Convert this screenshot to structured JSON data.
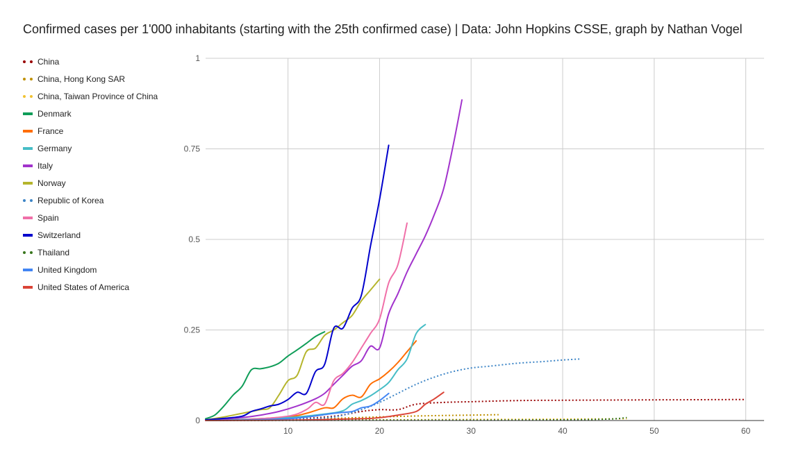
{
  "chart_data": {
    "type": "line",
    "title": "Confirmed cases per 1'000 inhabitants (starting with the 25th confirmed case) | Data: John Hopkins CSSE, graph by Nathan Vogel",
    "xlabel": "",
    "ylabel": "",
    "xlim": [
      1,
      62
    ],
    "ylim": [
      0,
      1
    ],
    "x_ticks": [
      10,
      20,
      30,
      40,
      50,
      60
    ],
    "y_ticks": [
      0,
      0.25,
      0.5,
      0.75,
      1
    ],
    "y_tick_labels": [
      "0",
      "0.25",
      "0.5",
      "0.75",
      "1"
    ],
    "grid": true,
    "legend_position": "left",
    "series": [
      {
        "name": "China",
        "color": "#990000",
        "dash": "dotted",
        "points": [
          [
            1,
            0.0
          ],
          [
            5,
            0.001
          ],
          [
            10,
            0.003
          ],
          [
            15,
            0.012
          ],
          [
            18,
            0.025
          ],
          [
            20,
            0.03
          ],
          [
            22,
            0.03
          ],
          [
            24,
            0.045
          ],
          [
            27,
            0.05
          ],
          [
            30,
            0.052
          ],
          [
            35,
            0.055
          ],
          [
            40,
            0.056
          ],
          [
            50,
            0.057
          ],
          [
            60,
            0.058
          ]
        ]
      },
      {
        "name": "China, Hong Kong SAR",
        "color": "#bf9000",
        "dash": "dotted",
        "points": [
          [
            1,
            0.0
          ],
          [
            10,
            0.003
          ],
          [
            15,
            0.006
          ],
          [
            20,
            0.01
          ],
          [
            25,
            0.013
          ],
          [
            30,
            0.015
          ],
          [
            33,
            0.016
          ]
        ]
      },
      {
        "name": "China, Taiwan Province of China",
        "color": "#f1c232",
        "dash": "dotted",
        "points": [
          [
            1,
            0.0
          ],
          [
            10,
            0.001
          ],
          [
            20,
            0.002
          ],
          [
            30,
            0.003
          ],
          [
            40,
            0.004
          ],
          [
            47,
            0.005
          ]
        ]
      },
      {
        "name": "Denmark",
        "color": "#0f9d58",
        "dash": "solid",
        "points": [
          [
            1,
            0.005
          ],
          [
            2,
            0.015
          ],
          [
            3,
            0.04
          ],
          [
            4,
            0.07
          ],
          [
            5,
            0.095
          ],
          [
            6,
            0.14
          ],
          [
            7,
            0.143
          ],
          [
            8,
            0.148
          ],
          [
            9,
            0.158
          ],
          [
            10,
            0.178
          ],
          [
            11,
            0.195
          ],
          [
            12,
            0.213
          ],
          [
            13,
            0.232
          ],
          [
            14,
            0.245
          ]
        ]
      },
      {
        "name": "France",
        "color": "#ff6d01",
        "dash": "solid",
        "points": [
          [
            1,
            0.0
          ],
          [
            5,
            0.003
          ],
          [
            10,
            0.01
          ],
          [
            12,
            0.02
          ],
          [
            14,
            0.035
          ],
          [
            15,
            0.035
          ],
          [
            16,
            0.06
          ],
          [
            17,
            0.07
          ],
          [
            18,
            0.065
          ],
          [
            19,
            0.1
          ],
          [
            20,
            0.115
          ],
          [
            21,
            0.135
          ],
          [
            22,
            0.16
          ],
          [
            23,
            0.19
          ],
          [
            24,
            0.22
          ]
        ]
      },
      {
        "name": "Germany",
        "color": "#46bdc6",
        "dash": "solid",
        "points": [
          [
            1,
            0.0
          ],
          [
            5,
            0.003
          ],
          [
            10,
            0.008
          ],
          [
            14,
            0.018
          ],
          [
            16,
            0.027
          ],
          [
            17,
            0.045
          ],
          [
            18,
            0.055
          ],
          [
            19,
            0.068
          ],
          [
            20,
            0.085
          ],
          [
            21,
            0.105
          ],
          [
            22,
            0.14
          ],
          [
            23,
            0.17
          ],
          [
            24,
            0.24
          ],
          [
            25,
            0.265
          ]
        ]
      },
      {
        "name": "Italy",
        "color": "#a233cc",
        "dash": "solid",
        "points": [
          [
            1,
            0.0
          ],
          [
            5,
            0.008
          ],
          [
            7,
            0.015
          ],
          [
            9,
            0.025
          ],
          [
            11,
            0.04
          ],
          [
            13,
            0.06
          ],
          [
            14,
            0.075
          ],
          [
            15,
            0.1
          ],
          [
            16,
            0.125
          ],
          [
            17,
            0.15
          ],
          [
            18,
            0.165
          ],
          [
            19,
            0.205
          ],
          [
            20,
            0.2
          ],
          [
            21,
            0.295
          ],
          [
            22,
            0.35
          ],
          [
            23,
            0.41
          ],
          [
            24,
            0.46
          ],
          [
            25,
            0.51
          ],
          [
            26,
            0.57
          ],
          [
            27,
            0.64
          ],
          [
            28,
            0.755
          ],
          [
            29,
            0.885
          ]
        ]
      },
      {
        "name": "Norway",
        "color": "#b5b52c",
        "dash": "solid",
        "points": [
          [
            1,
            0.002
          ],
          [
            3,
            0.01
          ],
          [
            5,
            0.02
          ],
          [
            7,
            0.03
          ],
          [
            8,
            0.035
          ],
          [
            9,
            0.07
          ],
          [
            10,
            0.11
          ],
          [
            11,
            0.125
          ],
          [
            12,
            0.19
          ],
          [
            13,
            0.2
          ],
          [
            14,
            0.235
          ],
          [
            15,
            0.25
          ],
          [
            16,
            0.27
          ],
          [
            17,
            0.29
          ],
          [
            18,
            0.33
          ],
          [
            19,
            0.36
          ],
          [
            20,
            0.39
          ]
        ]
      },
      {
        "name": "Republic of Korea",
        "color": "#3d85c6",
        "dash": "dotted",
        "points": [
          [
            1,
            0.0
          ],
          [
            10,
            0.003
          ],
          [
            15,
            0.01
          ],
          [
            18,
            0.03
          ],
          [
            20,
            0.05
          ],
          [
            22,
            0.075
          ],
          [
            24,
            0.1
          ],
          [
            26,
            0.12
          ],
          [
            28,
            0.135
          ],
          [
            30,
            0.145
          ],
          [
            32,
            0.15
          ],
          [
            35,
            0.158
          ],
          [
            38,
            0.163
          ],
          [
            40,
            0.167
          ],
          [
            42,
            0.17
          ]
        ]
      },
      {
        "name": "Spain",
        "color": "#f06fa8",
        "dash": "solid",
        "points": [
          [
            1,
            0.0
          ],
          [
            5,
            0.002
          ],
          [
            10,
            0.012
          ],
          [
            12,
            0.03
          ],
          [
            13,
            0.05
          ],
          [
            14,
            0.045
          ],
          [
            15,
            0.11
          ],
          [
            16,
            0.13
          ],
          [
            17,
            0.16
          ],
          [
            18,
            0.2
          ],
          [
            19,
            0.24
          ],
          [
            20,
            0.28
          ],
          [
            21,
            0.38
          ],
          [
            22,
            0.43
          ],
          [
            23,
            0.545
          ]
        ]
      },
      {
        "name": "Switzerland",
        "color": "#0000cc",
        "dash": "solid",
        "points": [
          [
            1,
            0.002
          ],
          [
            3,
            0.006
          ],
          [
            5,
            0.012
          ],
          [
            6,
            0.025
          ],
          [
            7,
            0.032
          ],
          [
            8,
            0.04
          ],
          [
            9,
            0.045
          ],
          [
            10,
            0.058
          ],
          [
            11,
            0.078
          ],
          [
            12,
            0.075
          ],
          [
            13,
            0.135
          ],
          [
            14,
            0.155
          ],
          [
            15,
            0.255
          ],
          [
            16,
            0.255
          ],
          [
            17,
            0.31
          ],
          [
            18,
            0.345
          ],
          [
            19,
            0.48
          ],
          [
            20,
            0.61
          ],
          [
            21,
            0.76
          ]
        ]
      },
      {
        "name": "Thailand",
        "color": "#38761d",
        "dash": "dotted",
        "points": [
          [
            1,
            0.0
          ],
          [
            20,
            0.001
          ],
          [
            30,
            0.001
          ],
          [
            40,
            0.002
          ],
          [
            45,
            0.004
          ],
          [
            47,
            0.008
          ]
        ]
      },
      {
        "name": "United Kingdom",
        "color": "#4285f4",
        "dash": "solid",
        "points": [
          [
            1,
            0.0
          ],
          [
            10,
            0.005
          ],
          [
            15,
            0.02
          ],
          [
            17,
            0.025
          ],
          [
            18,
            0.035
          ],
          [
            19,
            0.04
          ],
          [
            20,
            0.055
          ],
          [
            21,
            0.075
          ]
        ]
      },
      {
        "name": "United States of America",
        "color": "#db4437",
        "dash": "solid",
        "points": [
          [
            1,
            0.0
          ],
          [
            10,
            0.001
          ],
          [
            18,
            0.005
          ],
          [
            20,
            0.008
          ],
          [
            22,
            0.015
          ],
          [
            24,
            0.025
          ],
          [
            25,
            0.045
          ],
          [
            26,
            0.06
          ],
          [
            27,
            0.078
          ]
        ]
      }
    ]
  }
}
